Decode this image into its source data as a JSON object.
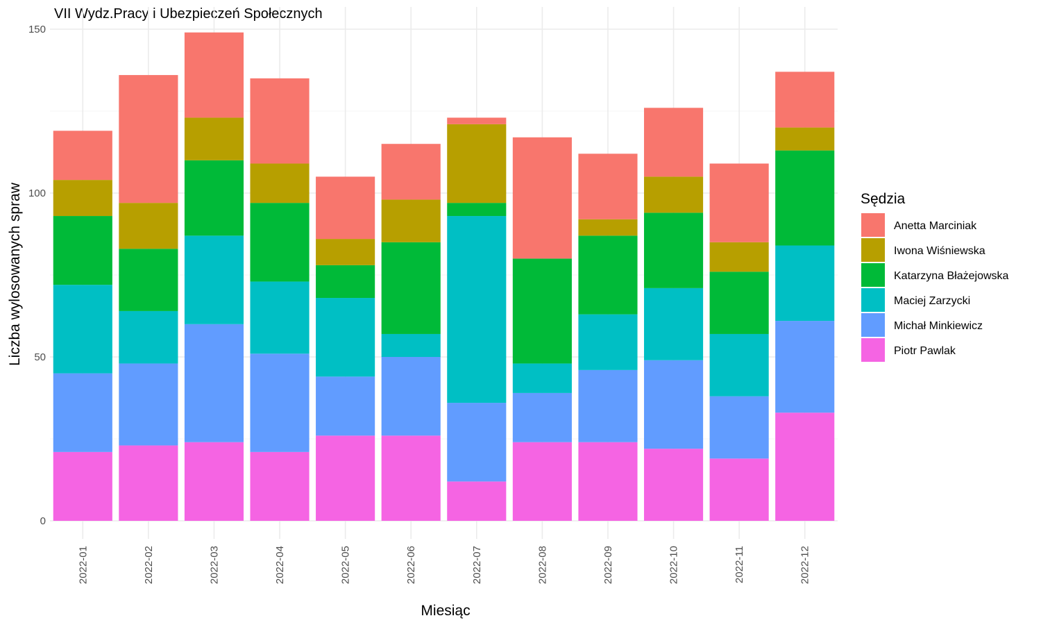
{
  "chart_data": {
    "type": "bar",
    "stacked": true,
    "title": "VII Wydz.Pracy i Ubezpieczeń Społecznych",
    "xlabel": "Miesiąc",
    "ylabel": "Liczba wylosowanych spraw",
    "ylim": [
      0,
      155
    ],
    "yticks": [
      0,
      50,
      100,
      150
    ],
    "grid": true,
    "legend_title": "Sędzia",
    "legend_position": "right",
    "categories": [
      "2022-01",
      "2022-02",
      "2022-03",
      "2022-04",
      "2022-05",
      "2022-06",
      "2022-07",
      "2022-08",
      "2022-09",
      "2022-10",
      "2022-11",
      "2022-12"
    ],
    "series": [
      {
        "name": "Piotr Pawlak",
        "color": "#f564e3",
        "values": [
          21,
          23,
          24,
          21,
          26,
          26,
          12,
          24,
          24,
          22,
          19,
          33
        ]
      },
      {
        "name": "Michał Minkiewicz",
        "color": "#619cff",
        "values": [
          24,
          25,
          36,
          30,
          18,
          24,
          24,
          15,
          22,
          27,
          19,
          28
        ]
      },
      {
        "name": "Maciej Zarzycki",
        "color": "#00bfc4",
        "values": [
          27,
          16,
          27,
          22,
          24,
          7,
          57,
          9,
          17,
          22,
          19,
          23
        ]
      },
      {
        "name": "Katarzyna Błażejowska",
        "color": "#00ba38",
        "values": [
          21,
          19,
          23,
          24,
          10,
          28,
          4,
          32,
          24,
          23,
          19,
          29
        ]
      },
      {
        "name": "Iwona Wiśniewska",
        "color": "#b79f00",
        "values": [
          11,
          14,
          13,
          12,
          8,
          13,
          24,
          0,
          5,
          11,
          9,
          7
        ]
      },
      {
        "name": "Anetta Marciniak",
        "color": "#f8766d",
        "values": [
          15,
          39,
          26,
          26,
          19,
          17,
          2,
          37,
          20,
          21,
          24,
          17
        ]
      }
    ],
    "legend_order": [
      "Anetta Marciniak",
      "Iwona Wiśniewska",
      "Katarzyna Błażejowska",
      "Maciej Zarzycki",
      "Michał Minkiewicz",
      "Piotr Pawlak"
    ]
  }
}
